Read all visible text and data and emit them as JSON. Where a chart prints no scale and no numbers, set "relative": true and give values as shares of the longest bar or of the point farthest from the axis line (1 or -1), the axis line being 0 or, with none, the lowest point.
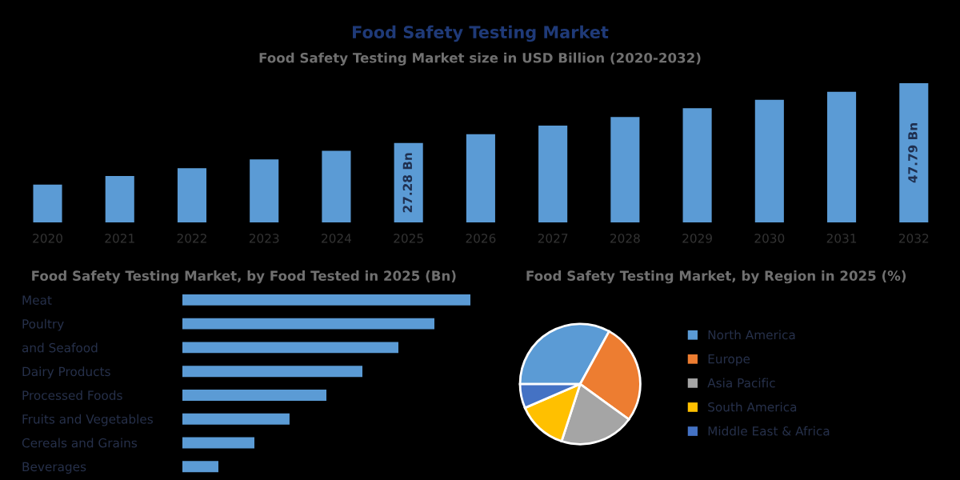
{
  "chart_data": [
    {
      "type": "bar",
      "title": "Food Safety Testing Market",
      "subtitle": "Food Safety Testing Market size in USD Billion (2020-2032)",
      "categories": [
        "2020",
        "2021",
        "2022",
        "2023",
        "2024",
        "2025",
        "2026",
        "2027",
        "2028",
        "2029",
        "2030",
        "2031",
        "2032"
      ],
      "series": [
        {
          "color": "#5b9bd5",
          "values": [
            13.0,
            15.9,
            18.6,
            21.6,
            24.6,
            27.28,
            30.3,
            33.2,
            36.2,
            39.2,
            42.1,
            44.8,
            47.79
          ],
          "value_labels": [
            null,
            null,
            null,
            null,
            null,
            "27.28 Bn",
            null,
            null,
            null,
            null,
            null,
            null,
            "47.79 Bn"
          ]
        }
      ],
      "grid": false,
      "legend": false
    },
    {
      "type": "bar",
      "title": "Food Safety Testing Market, by Food Tested in 2025 (Bn)",
      "relative": true,
      "orientation": "horizontal",
      "categories": [
        "Meat",
        "Poultry",
        "and Seafood",
        "Dairy Products",
        "Processed Foods",
        "Fruits and Vegetables",
        "Cereals and Grains",
        "Beverages"
      ],
      "series": [
        {
          "color": "#5b9bd5",
          "values": [
            1,
            0.875,
            0.75,
            0.625,
            0.5,
            0.372,
            0.25,
            0.125
          ]
        }
      ],
      "grid": false,
      "legend": false
    },
    {
      "type": "pie",
      "title": "Food Safety Testing Market, by Region in 2025 (%)",
      "categories": [
        "North America",
        "Europe",
        "Asia Pacific",
        "South America",
        "Middle East & Africa"
      ],
      "values": [
        33,
        27,
        20,
        13.5,
        6.5
      ],
      "colors": [
        "#5b9bd5",
        "#ed7d31",
        "#a5a5a5",
        "#ffc000",
        "#4472c4"
      ],
      "legend": "right"
    }
  ]
}
